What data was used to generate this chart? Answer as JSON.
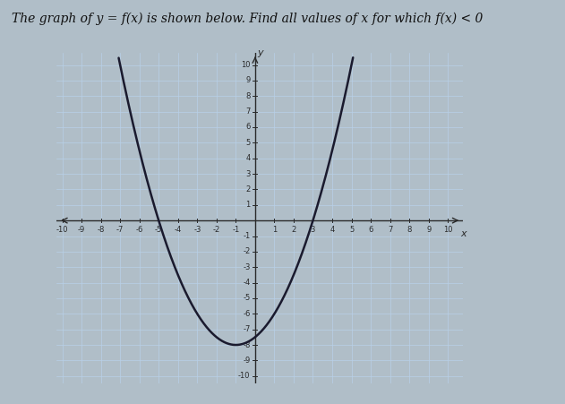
{
  "title_line1": "The graph of y = f(x) is shown below. Find all values of x for which f(x) < 0",
  "xlim": [
    -10,
    10
  ],
  "ylim": [
    -10,
    10
  ],
  "xticks": [
    -10,
    -9,
    -8,
    -7,
    -6,
    -5,
    -4,
    -3,
    -2,
    -1,
    1,
    2,
    3,
    4,
    5,
    6,
    7,
    8,
    9,
    10
  ],
  "yticks": [
    -10,
    -9,
    -8,
    -7,
    -6,
    -5,
    -4,
    -3,
    -2,
    -1,
    1,
    2,
    3,
    4,
    5,
    6,
    7,
    8,
    9,
    10
  ],
  "curve_color": "#1a1a2e",
  "grid_color": "#b8d0e8",
  "axis_color": "#2a2a2a",
  "fig_bg_color": "#b0bec8",
  "plot_bg_color": "#c8dce8",
  "a": 0.5,
  "b": 1.0,
  "c": -7.5,
  "title_fontsize": 10,
  "title_color": "#111111",
  "tick_fontsize": 6,
  "curve_linewidth": 1.8
}
